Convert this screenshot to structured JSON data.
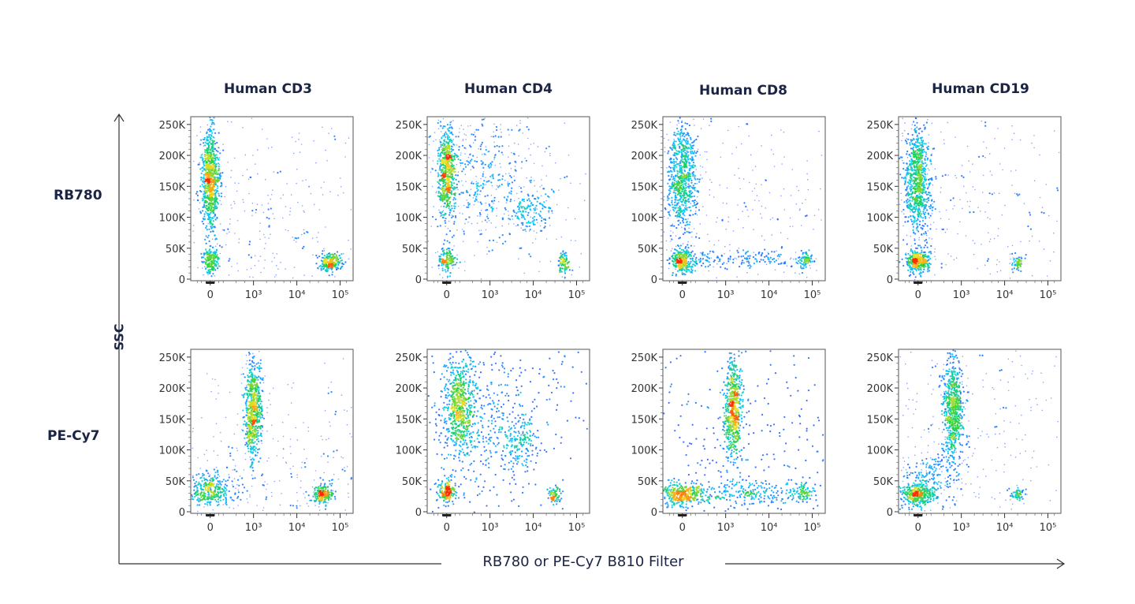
{
  "axis_labels": {
    "x": "RB780 or PE-Cy7 B810 Filter",
    "y": "SSC"
  },
  "chart_data": {
    "type": "scatter",
    "subtype": "flow-cytometry-density-dot-plot",
    "columns": [
      "Human CD3",
      "Human CD4",
      "Human CD8",
      "Human CD19"
    ],
    "rows": [
      "RB780",
      "PE-Cy7"
    ],
    "xlabel": "RB780 or PE-Cy7 B810 Filter",
    "ylabel": "SSC",
    "x_scale": "biexponential",
    "x_ticks": [
      "0",
      "10³",
      "10⁴",
      "10⁵"
    ],
    "y_ticks": [
      "0",
      "50K",
      "100K",
      "150K",
      "200K",
      "250K"
    ],
    "ylim": [
      0,
      260000
    ],
    "colormap": [
      "#3a2cff",
      "#00c8ff",
      "#20d040",
      "#f0e020",
      "#ff2a00"
    ],
    "panels": [
      {
        "row": "RB780",
        "column": "Human CD3",
        "populations": [
          {
            "x": 0,
            "y": 160000,
            "x_spread": 0.1,
            "y_spread": 42000,
            "weight": 0.55
          },
          {
            "x": 0,
            "y": 30000,
            "x_spread": 0.1,
            "y_spread": 12000,
            "weight": 0.12
          },
          {
            "x": 60000,
            "y": 28000,
            "x_spread": 0.14,
            "y_spread": 8000,
            "weight": 0.15
          },
          {
            "x": 1000,
            "y": 90000,
            "x_spread": 1.0,
            "y_spread": 60000,
            "weight": 0.1
          }
        ]
      },
      {
        "row": "RB780",
        "column": "Human CD4",
        "populations": [
          {
            "x": 0,
            "y": 175000,
            "x_spread": 0.1,
            "y_spread": 38000,
            "weight": 0.4
          },
          {
            "x": 0,
            "y": 32000,
            "x_spread": 0.1,
            "y_spread": 10000,
            "weight": 0.1
          },
          {
            "x": 9000,
            "y": 110000,
            "x_spread": 0.25,
            "y_spread": 20000,
            "weight": 0.1
          },
          {
            "x": 50000,
            "y": 25000,
            "x_spread": 0.07,
            "y_spread": 8000,
            "weight": 0.06
          },
          {
            "x": 800,
            "y": 160000,
            "x_spread": 0.7,
            "y_spread": 50000,
            "weight": 0.28
          }
        ]
      },
      {
        "row": "RB780",
        "column": "Human CD8",
        "populations": [
          {
            "x": 0,
            "y": 165000,
            "x_spread": 0.17,
            "y_spread": 45000,
            "weight": 0.5
          },
          {
            "x": 0,
            "y": 28000,
            "x_spread": 0.15,
            "y_spread": 9000,
            "weight": 0.2
          },
          {
            "x": 70000,
            "y": 30000,
            "x_spread": 0.08,
            "y_spread": 7000,
            "weight": 0.05
          },
          {
            "x": 3000,
            "y": 32000,
            "x_spread": 0.9,
            "y_spread": 9000,
            "weight": 0.12
          },
          {
            "x": 1000,
            "y": 120000,
            "x_spread": 1.1,
            "y_spread": 60000,
            "weight": 0.06
          }
        ]
      },
      {
        "row": "RB780",
        "column": "Human CD19",
        "populations": [
          {
            "x": 0,
            "y": 160000,
            "x_spread": 0.15,
            "y_spread": 45000,
            "weight": 0.55
          },
          {
            "x": 0,
            "y": 28000,
            "x_spread": 0.14,
            "y_spread": 10000,
            "weight": 0.22
          },
          {
            "x": 20000,
            "y": 28000,
            "x_spread": 0.07,
            "y_spread": 6000,
            "weight": 0.04
          },
          {
            "x": 1000,
            "y": 120000,
            "x_spread": 1.0,
            "y_spread": 60000,
            "weight": 0.06
          }
        ]
      },
      {
        "row": "PE-Cy7",
        "column": "Human CD3",
        "populations": [
          {
            "x": 1000,
            "y": 165000,
            "x_spread": 0.1,
            "y_spread": 40000,
            "weight": 0.45
          },
          {
            "x": 0,
            "y": 35000,
            "x_spread": 0.25,
            "y_spread": 12000,
            "weight": 0.22
          },
          {
            "x": 40000,
            "y": 28000,
            "x_spread": 0.12,
            "y_spread": 8000,
            "weight": 0.13
          },
          {
            "x": 2000,
            "y": 60000,
            "x_spread": 1.0,
            "y_spread": 50000,
            "weight": 0.1
          }
        ]
      },
      {
        "row": "PE-Cy7",
        "column": "Human CD4",
        "populations": [
          {
            "x": 300,
            "y": 170000,
            "x_spread": 0.17,
            "y_spread": 40000,
            "weight": 0.42
          },
          {
            "x": 0,
            "y": 33000,
            "x_spread": 0.1,
            "y_spread": 10000,
            "weight": 0.12
          },
          {
            "x": 5000,
            "y": 110000,
            "x_spread": 0.2,
            "y_spread": 20000,
            "weight": 0.09
          },
          {
            "x": 30000,
            "y": 25000,
            "x_spread": 0.07,
            "y_spread": 7000,
            "weight": 0.05
          },
          {
            "x": 1000,
            "y": 150000,
            "x_spread": 0.7,
            "y_spread": 55000,
            "weight": 0.25
          }
        ]
      },
      {
        "row": "PE-Cy7",
        "column": "Human CD8",
        "populations": [
          {
            "x": 1500,
            "y": 165000,
            "x_spread": 0.1,
            "y_spread": 42000,
            "weight": 0.42
          },
          {
            "x": 0,
            "y": 28000,
            "x_spread": 0.28,
            "y_spread": 9000,
            "weight": 0.25
          },
          {
            "x": 60000,
            "y": 32000,
            "x_spread": 0.1,
            "y_spread": 8000,
            "weight": 0.05
          },
          {
            "x": 4000,
            "y": 30000,
            "x_spread": 0.8,
            "y_spread": 9000,
            "weight": 0.14
          },
          {
            "x": 1000,
            "y": 90000,
            "x_spread": 1.0,
            "y_spread": 60000,
            "weight": 0.08
          }
        ]
      },
      {
        "row": "PE-Cy7",
        "column": "Human CD19",
        "populations": [
          {
            "x": 800,
            "y": 165000,
            "x_spread": 0.12,
            "y_spread": 42000,
            "weight": 0.45
          },
          {
            "x": 0,
            "y": 28000,
            "x_spread": 0.2,
            "y_spread": 10000,
            "weight": 0.25
          },
          {
            "x": 20000,
            "y": 28000,
            "x_spread": 0.08,
            "y_spread": 6000,
            "weight": 0.04
          },
          {
            "x": 300,
            "y": 60000,
            "x_spread": 0.4,
            "y_spread": 25000,
            "weight": 0.12
          },
          {
            "x": 1000,
            "y": 110000,
            "x_spread": 1.0,
            "y_spread": 60000,
            "weight": 0.06
          }
        ]
      }
    ]
  }
}
